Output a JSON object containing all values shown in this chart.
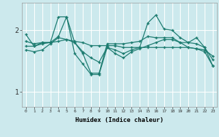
{
  "xlabel": "Humidex (Indice chaleur)",
  "background_color": "#cce9ed",
  "grid_color": "#ffffff",
  "line_color": "#1a7a6e",
  "x_ticks": [
    0,
    1,
    2,
    3,
    4,
    5,
    6,
    7,
    8,
    9,
    10,
    11,
    12,
    13,
    14,
    15,
    16,
    17,
    18,
    19,
    20,
    21,
    22,
    23
  ],
  "y_ticks": [
    1,
    2
  ],
  "ylim": [
    0.75,
    2.45
  ],
  "xlim": [
    -0.5,
    23.5
  ],
  "series": [
    [
      1.93,
      1.74,
      1.8,
      1.8,
      2.22,
      2.22,
      1.8,
      1.62,
      1.3,
      1.3,
      1.78,
      1.78,
      1.78,
      1.8,
      1.82,
      1.9,
      1.88,
      1.88,
      1.88,
      1.8,
      1.8,
      1.78,
      1.72,
      1.42
    ],
    [
      1.74,
      1.74,
      1.78,
      1.8,
      1.9,
      2.22,
      1.62,
      1.45,
      1.28,
      1.28,
      1.72,
      1.68,
      1.62,
      1.68,
      1.72,
      2.12,
      2.25,
      2.02,
      2.0,
      1.88,
      1.8,
      1.88,
      1.72,
      1.52
    ],
    [
      1.82,
      1.78,
      1.8,
      1.8,
      1.82,
      1.85,
      1.82,
      1.8,
      1.75,
      1.75,
      1.75,
      1.75,
      1.72,
      1.72,
      1.72,
      1.72,
      1.72,
      1.72,
      1.72,
      1.72,
      1.72,
      1.7,
      1.68,
      1.58
    ],
    [
      1.68,
      1.65,
      1.68,
      1.78,
      1.88,
      1.85,
      1.8,
      1.65,
      1.55,
      1.48,
      1.72,
      1.62,
      1.55,
      1.65,
      1.7,
      1.75,
      1.8,
      1.85,
      1.85,
      1.8,
      1.72,
      1.7,
      1.65,
      1.42
    ]
  ]
}
